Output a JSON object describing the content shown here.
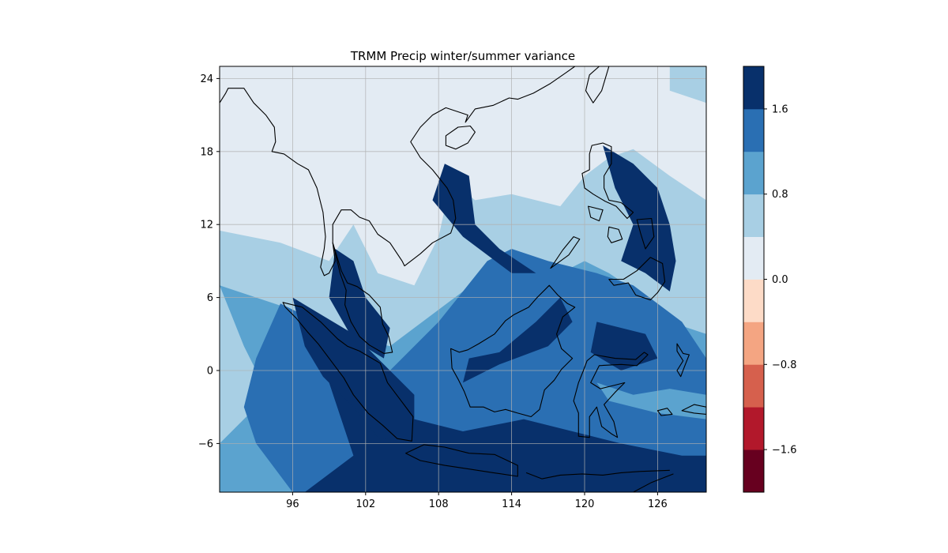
{
  "title": "TRMM Precip winter/summer variance",
  "map": {
    "lon_range": [
      90,
      130
    ],
    "lat_range": [
      -10,
      25
    ],
    "x_ticks": [
      "96",
      "102",
      "108",
      "114",
      "120",
      "126"
    ],
    "x_tick_values": [
      96,
      102,
      108,
      114,
      120,
      126
    ],
    "y_ticks": [
      "24",
      "18",
      "12",
      "6",
      "0",
      "−6"
    ],
    "y_tick_values": [
      24,
      18,
      12,
      6,
      0,
      -6
    ],
    "grid": true,
    "coastline_color": "#000000"
  },
  "colorbar": {
    "levels": [
      -2.0,
      -1.6,
      -1.2,
      -0.8,
      -0.4,
      0.0,
      0.4,
      0.8,
      1.2,
      1.6,
      2.0
    ],
    "colors": [
      "#67001f",
      "#b2182b",
      "#d6604d",
      "#f4a582",
      "#fddbc7",
      "#e3ebf3",
      "#a8cfe4",
      "#5ba3cf",
      "#2a6fb3",
      "#08306b"
    ],
    "tick_labels": [
      "1.6",
      "0.8",
      "0.0",
      "−0.8",
      "−1.6"
    ],
    "tick_values": [
      1.6,
      0.8,
      0.0,
      -0.8,
      -1.6
    ]
  }
}
